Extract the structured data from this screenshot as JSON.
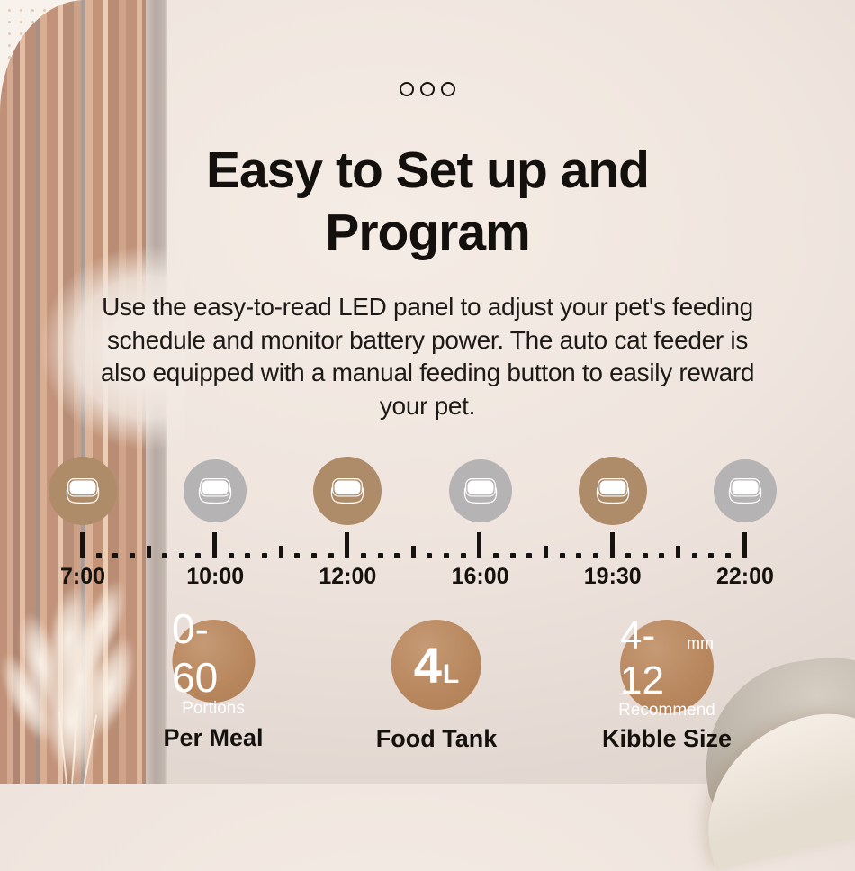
{
  "page": {
    "type": "product-feature-banner"
  },
  "carousel": {
    "dot_count": 3
  },
  "heading": {
    "line1": "Easy to Set up and",
    "line2": "Program"
  },
  "description": {
    "lines": [
      "Use the easy-to-read LED panel to adjust your pet's feeding",
      "schedule and monitor battery power. The auto cat feeder is",
      "also equipped with a manual feeding button to easily reward",
      "your pet."
    ]
  },
  "timeline": {
    "entries": [
      {
        "time": "7:00",
        "highlighted": true
      },
      {
        "time": "10:00",
        "highlighted": false
      },
      {
        "time": "12:00",
        "highlighted": true
      },
      {
        "time": "16:00",
        "highlighted": false
      },
      {
        "time": "19:30",
        "highlighted": true
      },
      {
        "time": "22:00",
        "highlighted": false
      }
    ],
    "minor_ticks_between_majors": 7
  },
  "badges": [
    {
      "value": "0-60",
      "unit": "",
      "subtext": "Portions",
      "label": "Per Meal"
    },
    {
      "value": "4",
      "unit": "L",
      "subtext": "",
      "label": "Food Tank"
    },
    {
      "value": "4-12",
      "unit": "mm",
      "subtext": "Recommend",
      "label": "Kibble Size"
    }
  ],
  "icons": {
    "timeline_circle": "pet-bowl-icon",
    "carousel_dot": "circle-outline-icon"
  },
  "colors": {
    "accent": "#b9885f",
    "accent_light": "#c59a75",
    "timeline_active": "#ae8b69",
    "timeline_inactive": "#b5b3b4",
    "text": "#15110d",
    "background": "#efe5de"
  }
}
